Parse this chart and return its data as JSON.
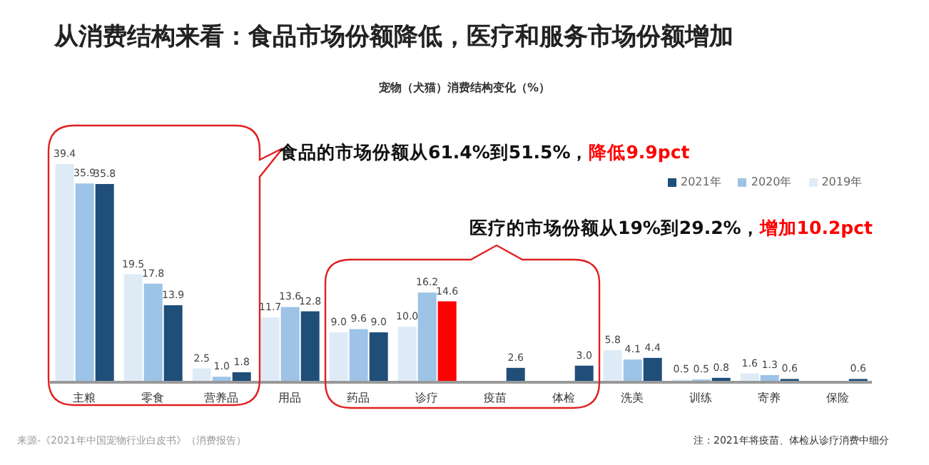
{
  "chart_data": {
    "type": "bar",
    "title": "从消费结构来看：食品市场份额降低，医疗和服务市场份额增加",
    "subtitle": "宠物（犬猫）消费结构变化（%）",
    "categories": [
      "主粮",
      "零食",
      "营养品",
      "用品",
      "药品",
      "诊疗",
      "疫苗",
      "体检",
      "洗美",
      "训练",
      "寄养",
      "保险"
    ],
    "series": [
      {
        "name": "2019年",
        "color": "#deebf7",
        "values": [
          39.4,
          19.5,
          2.5,
          11.7,
          9.0,
          10.0,
          null,
          null,
          5.8,
          0.5,
          1.6,
          null
        ],
        "value_labels": [
          "39.4",
          "19.5",
          "2.5",
          "11.7",
          "9.0",
          "10.0",
          null,
          null,
          "5.8",
          "0.5",
          "1.6",
          null
        ]
      },
      {
        "name": "2020年",
        "color": "#9dc3e6",
        "values": [
          35.9,
          17.8,
          1.0,
          13.6,
          9.6,
          16.2,
          null,
          null,
          4.1,
          0.5,
          1.3,
          null
        ],
        "value_labels": [
          "35.9",
          "17.8",
          "1.0",
          "13.6",
          "9.6",
          "16.2",
          null,
          null,
          "4.1",
          "0.5",
          "1.3",
          null
        ]
      },
      {
        "name": "2021年",
        "color": "#1f4e79",
        "colors": [
          "#1f4e79",
          "#1f4e79",
          "#1f4e79",
          "#1f4e79",
          "#1f4e79",
          "#ff0000",
          "#1f4e79",
          "#1f4e79",
          "#1f4e79",
          "#1f4e79",
          "#1f4e79",
          "#1f4e79"
        ],
        "values": [
          35.8,
          13.9,
          1.8,
          12.8,
          9.0,
          14.6,
          2.6,
          3.0,
          4.4,
          0.8,
          0.6,
          0.6
        ],
        "value_labels": [
          "35.8",
          "13.9",
          "1.8",
          "12.8",
          "9.0",
          "14.6",
          "2.6",
          "3.0",
          "4.4",
          "0.8",
          "0.6",
          "0.6"
        ]
      }
    ],
    "tick_labels": "x",
    "legend": "top right",
    "annotations": [
      "食品的市场份额从61.4%到51.5%，",
      "降低9.9pct",
      "医疗的市场份额从19%到29.2%，",
      "增加10.2pct",
      "来源-《2021年中国宠物行业白皮书》（消费报告）",
      "注：2021年将疫苗、体检从诊疗消费中细分"
    ]
  }
}
